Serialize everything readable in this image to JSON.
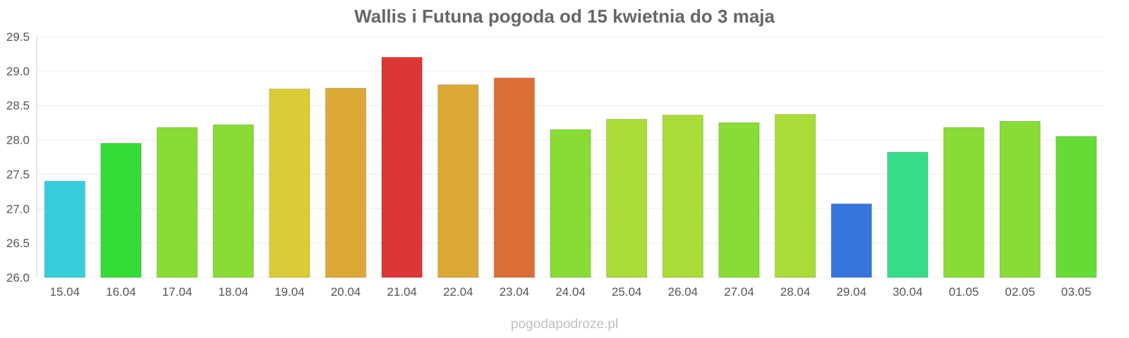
{
  "chart_data": {
    "type": "bar",
    "title": "Wallis i Futuna pogoda od 15 kwietnia do 3 maja",
    "xlabel": "",
    "ylabel": "",
    "ylim": [
      26.0,
      29.5
    ],
    "yticks": [
      "26.0",
      "26.5",
      "27.0",
      "27.5",
      "28.0",
      "28.5",
      "29.0",
      "29.5"
    ],
    "grid": true,
    "legend": "none",
    "categories": [
      "15.04",
      "16.04",
      "17.04",
      "18.04",
      "19.04",
      "20.04",
      "21.04",
      "22.04",
      "23.04",
      "24.04",
      "25.04",
      "26.04",
      "27.04",
      "28.04",
      "29.04",
      "30.04",
      "01.05",
      "02.05",
      "03.05"
    ],
    "values": [
      27.4,
      27.95,
      28.18,
      28.22,
      28.74,
      28.75,
      29.2,
      28.8,
      28.9,
      28.15,
      28.3,
      28.36,
      28.25,
      28.37,
      27.07,
      27.82,
      28.18,
      28.27,
      28.05
    ],
    "colors": [
      "#36cedc",
      "#35dc36",
      "#87dc36",
      "#87dc36",
      "#dbcb36",
      "#dca936",
      "#dc3636",
      "#dca936",
      "#dc6f36",
      "#87dc36",
      "#a9dc36",
      "#a9dc36",
      "#87dc36",
      "#a9dc36",
      "#3676dc",
      "#36dc87",
      "#87dc36",
      "#87dc36",
      "#65dc36"
    ]
  },
  "footer": {
    "watermark": "pogodapodroze.pl"
  }
}
